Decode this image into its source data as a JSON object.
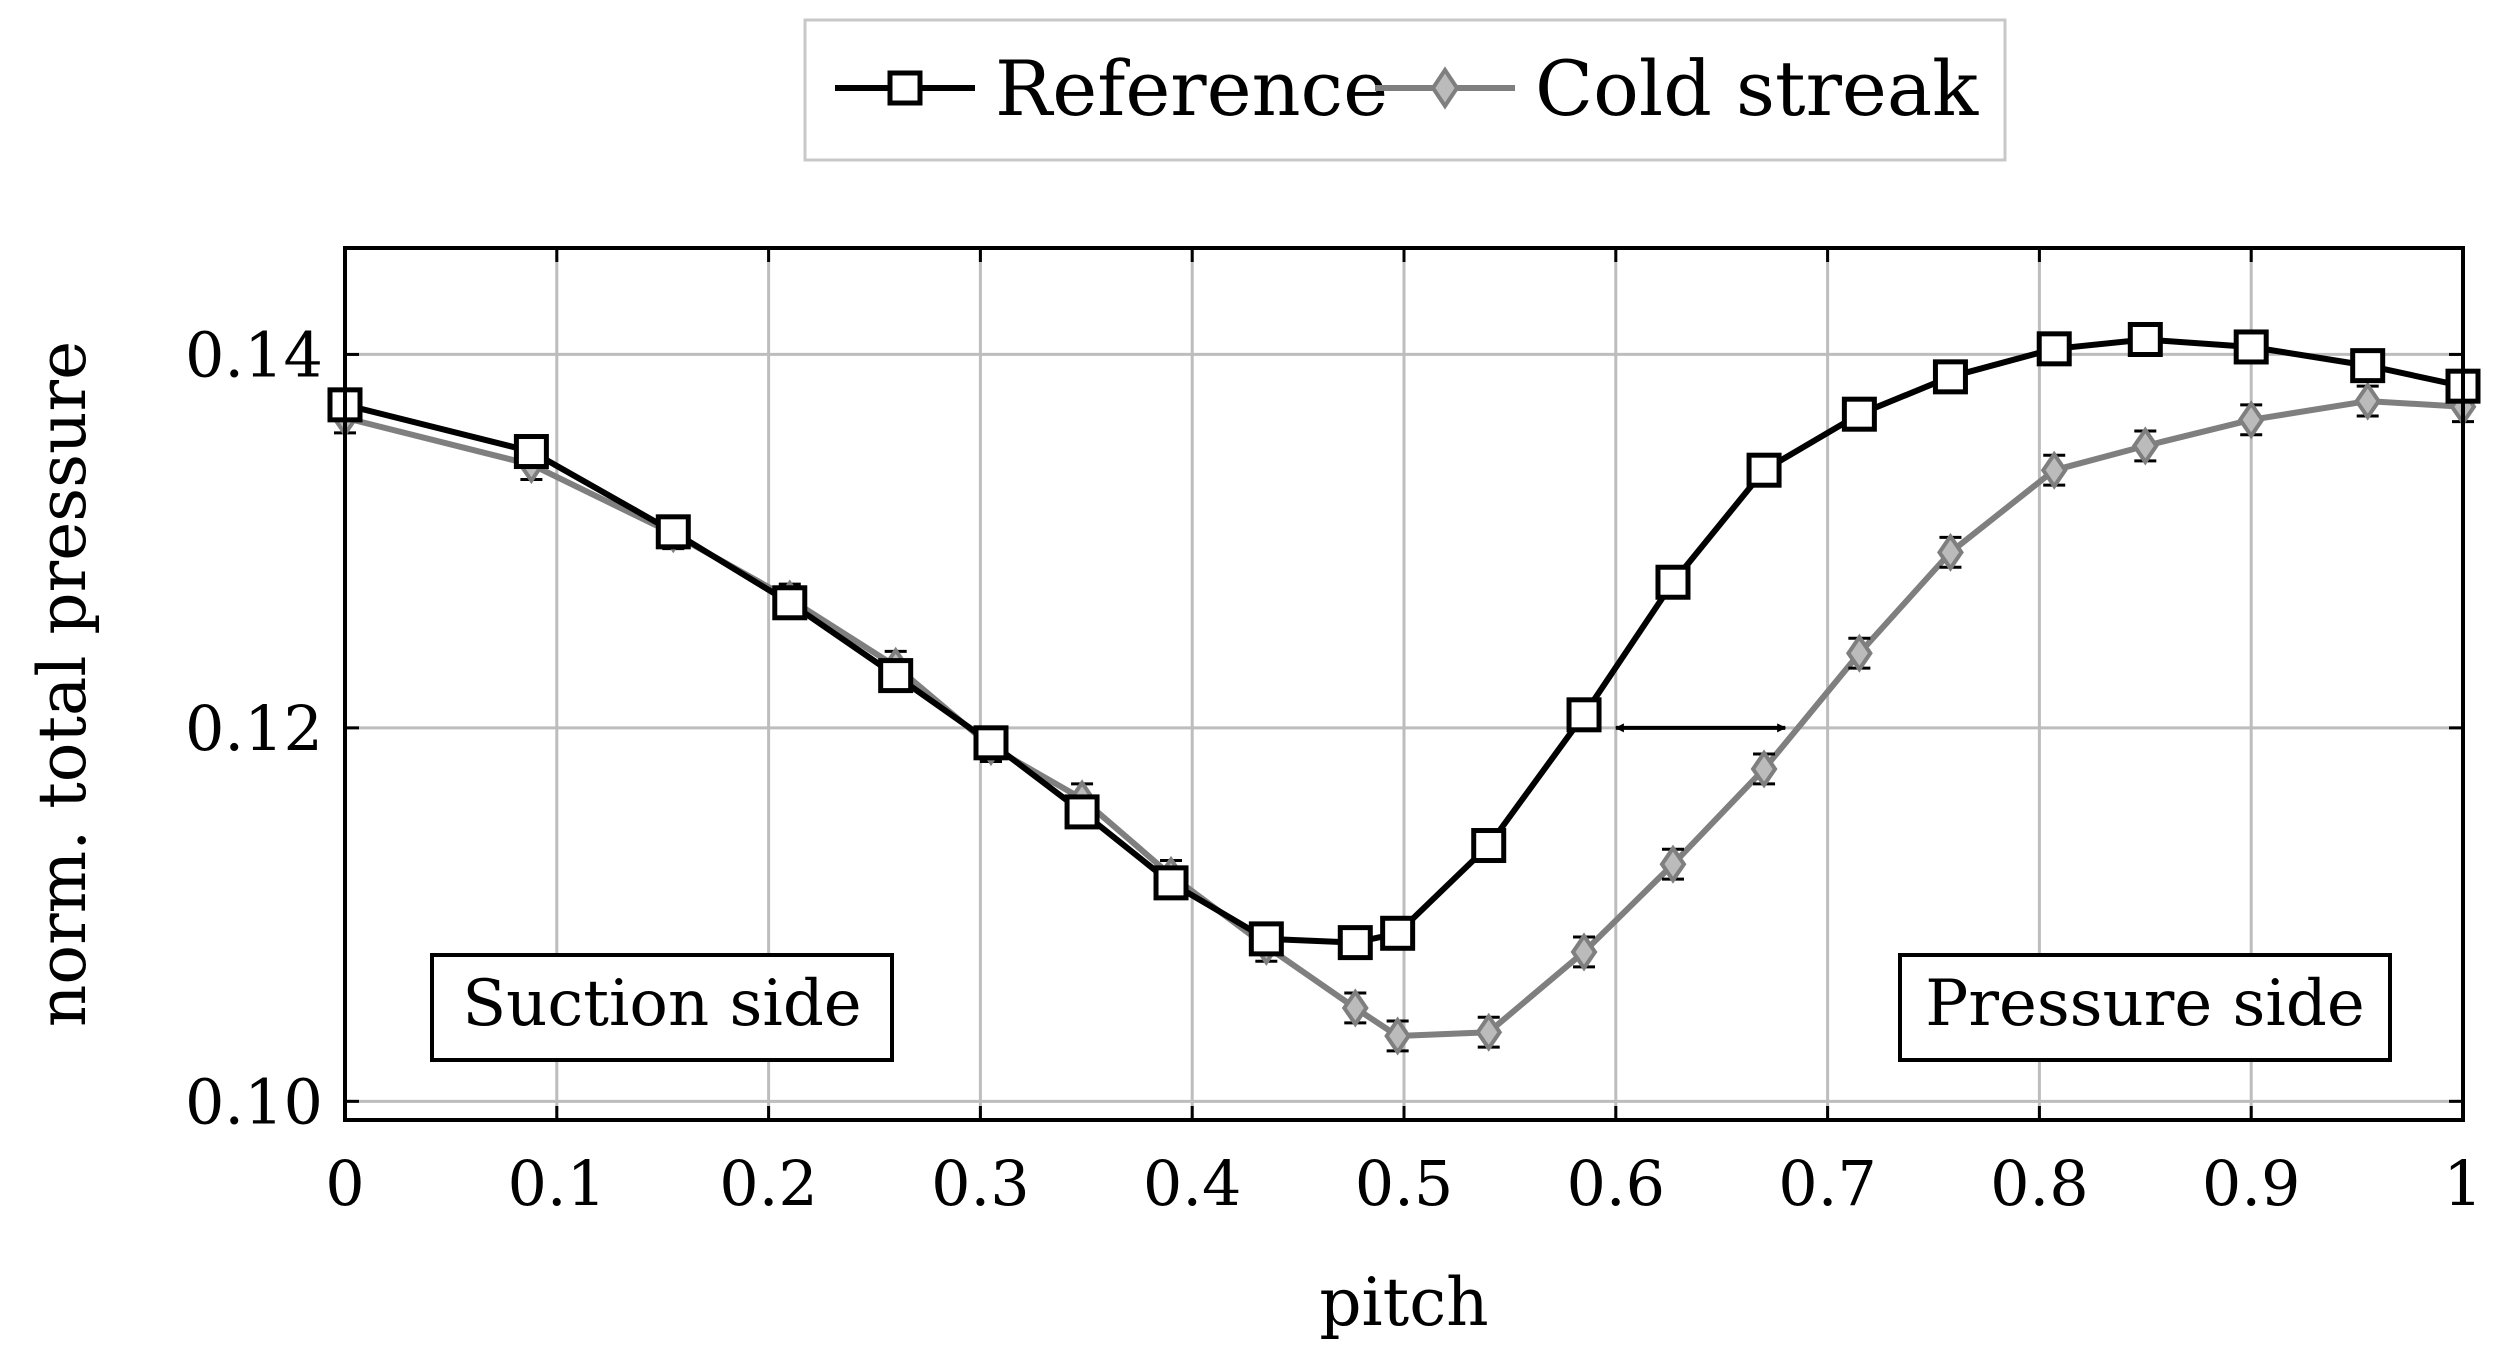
{
  "chart_data": {
    "type": "line",
    "xlabel": "pitch",
    "ylabel": "norm. total pressure",
    "xlim": [
      0,
      1
    ],
    "ylim": [
      0.099,
      0.1457
    ],
    "xticks": [
      0,
      0.1,
      0.2,
      0.3,
      0.4,
      0.5,
      0.6,
      0.7,
      0.8,
      0.9,
      1
    ],
    "xtick_labels": [
      "0",
      "0.1",
      "0.2",
      "0.3",
      "0.4",
      "0.5",
      "0.6",
      "0.7",
      "0.8",
      "0.9",
      "1"
    ],
    "yticks": [
      0.1,
      0.12,
      0.14
    ],
    "ytick_labels": [
      "0.10",
      "0.12",
      "0.14"
    ],
    "grid": true,
    "legend_position": "top-center-outside",
    "series": [
      {
        "name": "Reference",
        "color": "#000000",
        "marker": "square",
        "points": [
          {
            "x": 0.0,
            "y": 0.1373
          },
          {
            "x": 0.088,
            "y": 0.1348
          },
          {
            "x": 0.155,
            "y": 0.1305
          },
          {
            "x": 0.21,
            "y": 0.1267
          },
          {
            "x": 0.26,
            "y": 0.1228
          },
          {
            "x": 0.305,
            "y": 0.1192
          },
          {
            "x": 0.348,
            "y": 0.1155
          },
          {
            "x": 0.39,
            "y": 0.1117
          },
          {
            "x": 0.435,
            "y": 0.1087
          },
          {
            "x": 0.477,
            "y": 0.1085
          },
          {
            "x": 0.497,
            "y": 0.109
          },
          {
            "x": 0.54,
            "y": 0.1137
          },
          {
            "x": 0.585,
            "y": 0.1207
          },
          {
            "x": 0.627,
            "y": 0.1278
          },
          {
            "x": 0.67,
            "y": 0.1338
          },
          {
            "x": 0.715,
            "y": 0.1368
          },
          {
            "x": 0.758,
            "y": 0.1388
          },
          {
            "x": 0.807,
            "y": 0.1403
          },
          {
            "x": 0.85,
            "y": 0.1408
          },
          {
            "x": 0.9,
            "y": 0.1404
          },
          {
            "x": 0.955,
            "y": 0.1394
          },
          {
            "x": 1.0,
            "y": 0.1383
          }
        ]
      },
      {
        "name": "Cold streak",
        "color": "#7f7f7f",
        "marker": "diamond",
        "error_bar": 0.0008,
        "points": [
          {
            "x": 0.0,
            "y": 0.1366
          },
          {
            "x": 0.088,
            "y": 0.1341
          },
          {
            "x": 0.155,
            "y": 0.1304
          },
          {
            "x": 0.21,
            "y": 0.1269
          },
          {
            "x": 0.26,
            "y": 0.1233
          },
          {
            "x": 0.305,
            "y": 0.119
          },
          {
            "x": 0.348,
            "y": 0.1162
          },
          {
            "x": 0.39,
            "y": 0.1121
          },
          {
            "x": 0.435,
            "y": 0.1083
          },
          {
            "x": 0.477,
            "y": 0.105
          },
          {
            "x": 0.497,
            "y": 0.1035
          },
          {
            "x": 0.54,
            "y": 0.1037
          },
          {
            "x": 0.585,
            "y": 0.108
          },
          {
            "x": 0.627,
            "y": 0.1127
          },
          {
            "x": 0.67,
            "y": 0.1178
          },
          {
            "x": 0.715,
            "y": 0.124
          },
          {
            "x": 0.758,
            "y": 0.1294
          },
          {
            "x": 0.807,
            "y": 0.1338
          },
          {
            "x": 0.85,
            "y": 0.1351
          },
          {
            "x": 0.9,
            "y": 0.1365
          },
          {
            "x": 0.955,
            "y": 0.1375
          },
          {
            "x": 1.0,
            "y": 0.1372
          }
        ]
      }
    ],
    "annotations": [
      {
        "text": "Suction side",
        "anchor": "bottom-left"
      },
      {
        "text": "Pressure side",
        "anchor": "bottom-right"
      },
      {
        "type": "double-arrow",
        "from": {
          "x": 0.6,
          "y": 0.12
        },
        "to": {
          "x": 0.68,
          "y": 0.12
        }
      }
    ]
  }
}
